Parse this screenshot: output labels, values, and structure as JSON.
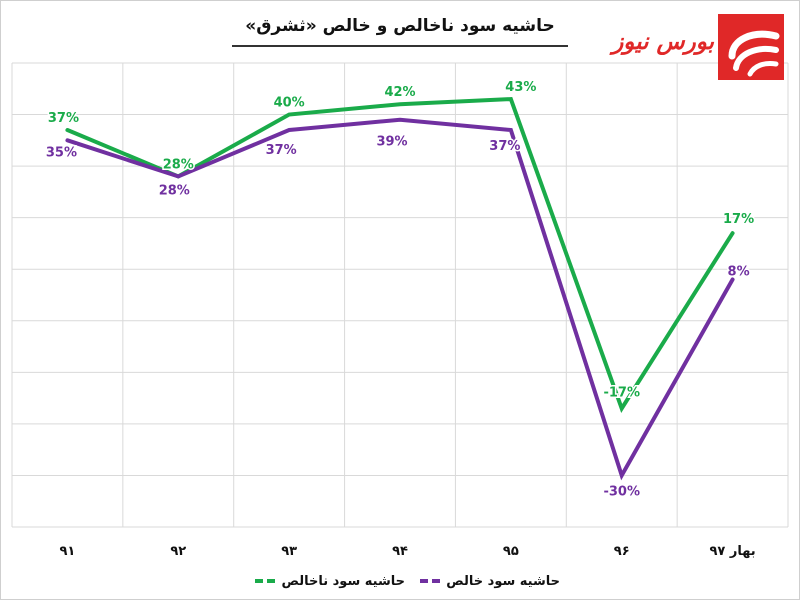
{
  "chart_data": {
    "type": "line",
    "title": "حاشیه سود ناخالص و خالص «ثشرق»",
    "categories": [
      "۹۱",
      "۹۲",
      "۹۳",
      "۹۴",
      "۹۵",
      "۹۶",
      "بهار ۹۷"
    ],
    "series": [
      {
        "name": "حاشیه سود ناخالص",
        "color": "#1aab4a",
        "values": [
          37,
          28,
          40,
          42,
          43,
          -17,
          17
        ],
        "labels": [
          "37%",
          "28%",
          "40%",
          "42%",
          "43%",
          "-17%",
          "17%"
        ]
      },
      {
        "name": "حاشیه سود خالص",
        "color": "#7030a0",
        "values": [
          35,
          28,
          37,
          39,
          37,
          -30,
          8
        ],
        "labels": [
          "35%",
          "28%",
          "37%",
          "39%",
          "37%",
          "-30%",
          "8%"
        ]
      }
    ],
    "ylim": [
      -40,
      50
    ],
    "grid": true,
    "legend_position": "bottom"
  },
  "logo": {
    "text": "بورس نیوز",
    "color": "#e02828"
  }
}
